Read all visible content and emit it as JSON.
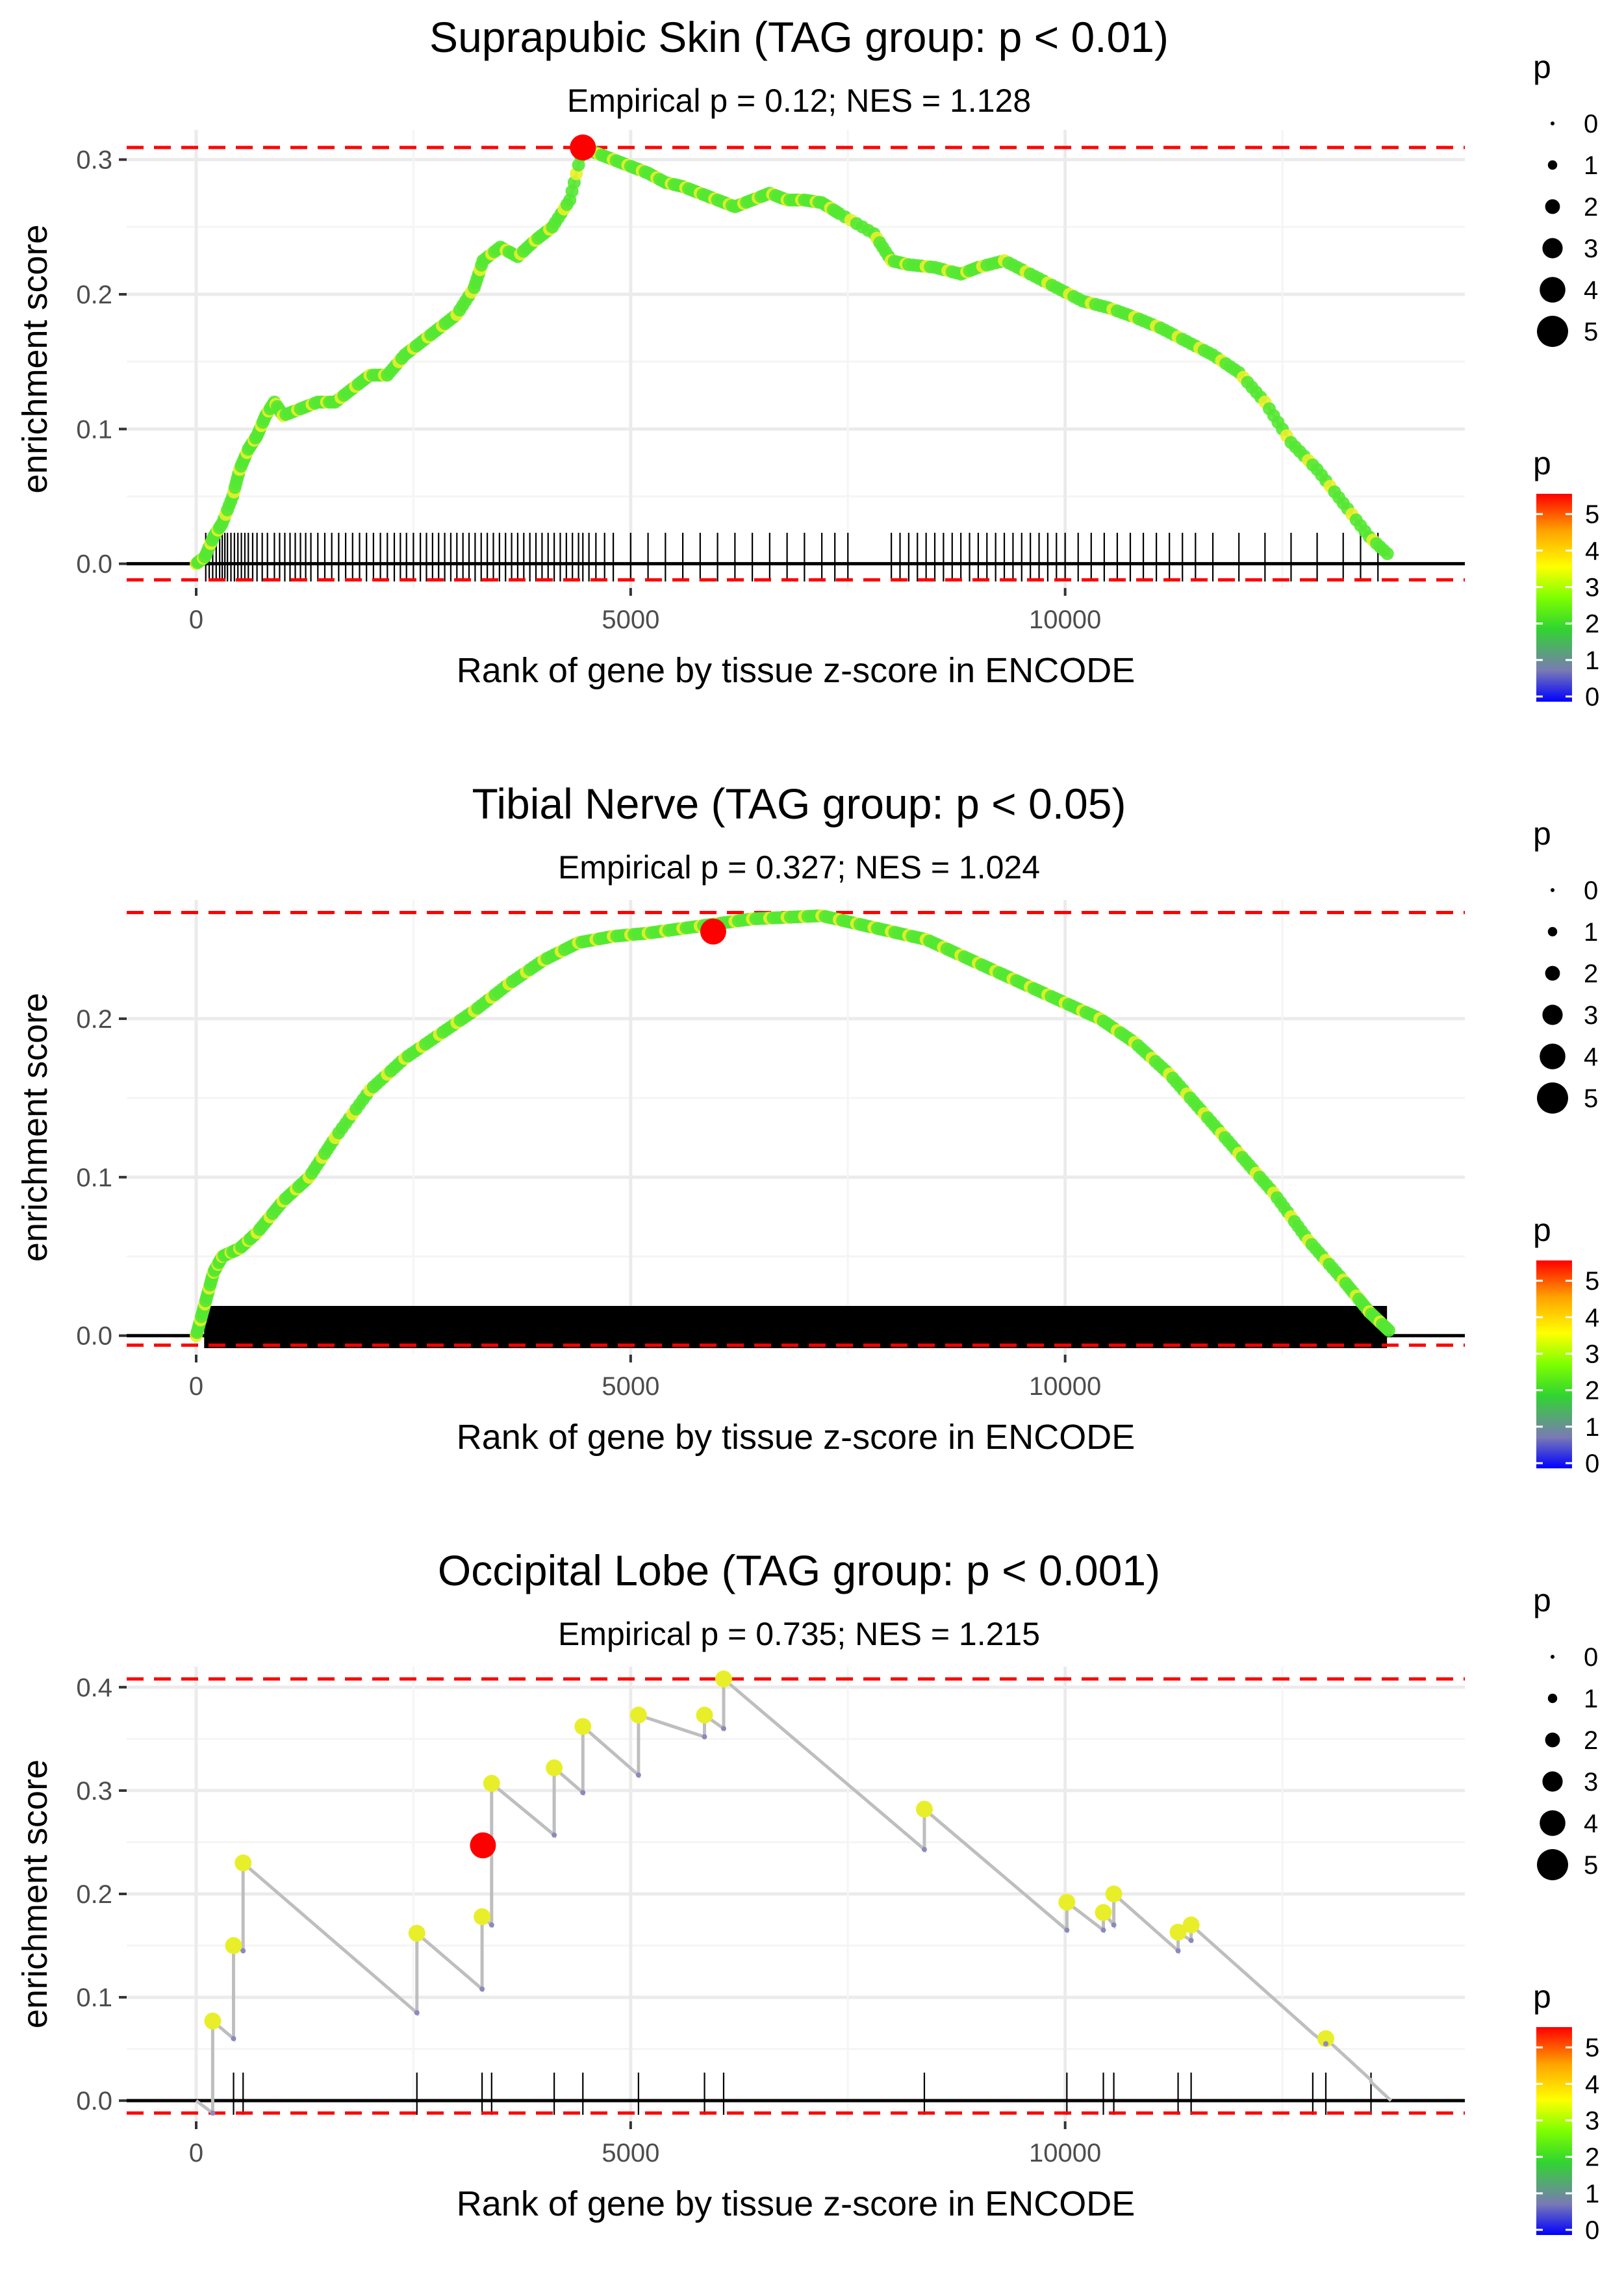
{
  "chart_data": [
    {
      "type": "line",
      "title": "Suprapubic Skin (TAG group: p < 0.01)",
      "subtitle": "Empirical p = 0.12; NES = 1.128",
      "xlabel": "Rank of gene by tissue z-score in ENCODE",
      "ylabel": "enrichment score",
      "xlim": [
        -800,
        14600
      ],
      "ylim": [
        -0.018,
        0.322
      ],
      "x_ticks": [
        0,
        5000,
        10000
      ],
      "x_tick_labels": [
        "0",
        "5000",
        "10000"
      ],
      "y_ticks": [
        0.0,
        0.1,
        0.2,
        0.3
      ],
      "y_tick_labels": [
        "0.0",
        "0.1",
        "0.2",
        "0.3"
      ],
      "max_es": 0.309,
      "min_es": -0.012,
      "leading_edge_point": {
        "x": 4450,
        "y": 0.309
      },
      "curve": [
        [
          0,
          0
        ],
        [
          100,
          0.005
        ],
        [
          200,
          0.02
        ],
        [
          300,
          0.03
        ],
        [
          420,
          0.05
        ],
        [
          500,
          0.07
        ],
        [
          600,
          0.085
        ],
        [
          700,
          0.095
        ],
        [
          800,
          0.11
        ],
        [
          900,
          0.12
        ],
        [
          1000,
          0.11
        ],
        [
          1200,
          0.115
        ],
        [
          1400,
          0.12
        ],
        [
          1600,
          0.12
        ],
        [
          1800,
          0.13
        ],
        [
          2000,
          0.14
        ],
        [
          2200,
          0.14
        ],
        [
          2400,
          0.155
        ],
        [
          2600,
          0.165
        ],
        [
          2800,
          0.175
        ],
        [
          3000,
          0.185
        ],
        [
          3200,
          0.205
        ],
        [
          3300,
          0.225
        ],
        [
          3500,
          0.235
        ],
        [
          3700,
          0.228
        ],
        [
          3900,
          0.24
        ],
        [
          4100,
          0.25
        ],
        [
          4300,
          0.27
        ],
        [
          4450,
          0.309
        ],
        [
          4600,
          0.305
        ],
        [
          4800,
          0.3
        ],
        [
          5000,
          0.295
        ],
        [
          5200,
          0.29
        ],
        [
          5400,
          0.283
        ],
        [
          5600,
          0.28
        ],
        [
          5800,
          0.275
        ],
        [
          6000,
          0.27
        ],
        [
          6200,
          0.265
        ],
        [
          6400,
          0.27
        ],
        [
          6600,
          0.275
        ],
        [
          6800,
          0.27
        ],
        [
          7000,
          0.27
        ],
        [
          7200,
          0.268
        ],
        [
          7400,
          0.26
        ],
        [
          7800,
          0.245
        ],
        [
          8000,
          0.225
        ],
        [
          8200,
          0.222
        ],
        [
          8500,
          0.22
        ],
        [
          8800,
          0.215
        ],
        [
          9000,
          0.22
        ],
        [
          9300,
          0.225
        ],
        [
          9600,
          0.215
        ],
        [
          9900,
          0.205
        ],
        [
          10200,
          0.195
        ],
        [
          10500,
          0.19
        ],
        [
          10800,
          0.183
        ],
        [
          11100,
          0.175
        ],
        [
          11400,
          0.165
        ],
        [
          11700,
          0.155
        ],
        [
          12000,
          0.142
        ],
        [
          12300,
          0.12
        ],
        [
          12600,
          0.09
        ],
        [
          12900,
          0.07
        ],
        [
          13200,
          0.045
        ],
        [
          13500,
          0.02
        ],
        [
          13750,
          0.005
        ]
      ],
      "hits": [
        110,
        150,
        190,
        230,
        270,
        300,
        330,
        360,
        400,
        440,
        480,
        520,
        560,
        600,
        650,
        700,
        760,
        820,
        900,
        960,
        1020,
        1080,
        1140,
        1200,
        1260,
        1320,
        1400,
        1480,
        1560,
        1640,
        1720,
        1800,
        1880,
        1960,
        2040,
        2120,
        2200,
        2280,
        2350,
        2420,
        2500,
        2580,
        2650,
        2720,
        2790,
        2860,
        2930,
        3000,
        3070,
        3140,
        3210,
        3280,
        3350,
        3420,
        3490,
        3560,
        3630,
        3700,
        3770,
        3840,
        3910,
        3980,
        4050,
        4120,
        4190,
        4260,
        4330,
        4400,
        4450,
        4520,
        4600,
        4700,
        4800,
        5000,
        5200,
        5400,
        5600,
        5800,
        6000,
        6200,
        6400,
        6600,
        6800,
        7000,
        7200,
        7350,
        7500,
        8000,
        8100,
        8200,
        8300,
        8400,
        8500,
        8600,
        8700,
        8800,
        8900,
        9000,
        9100,
        9200,
        9300,
        9400,
        9500,
        9600,
        9700,
        9800,
        9900,
        10000,
        10150,
        10300,
        10450,
        10600,
        10750,
        10900,
        11050,
        11200,
        11350,
        11500,
        11700,
        12000,
        12300,
        12600,
        12900,
        13200,
        13400,
        13600
      ],
      "legend": {
        "size_title": "p",
        "size_labels": [
          "0",
          "1",
          "2",
          "3",
          "4",
          "5"
        ],
        "color_title": "p",
        "color_labels": [
          "0",
          "1",
          "2",
          "3",
          "4",
          "5"
        ]
      }
    },
    {
      "type": "line",
      "title": "Tibial Nerve (TAG group: p < 0.05)",
      "subtitle": "Empirical p = 0.327; NES = 1.024",
      "xlabel": "Rank of gene by tissue z-score in ENCODE",
      "ylabel": "enrichment score",
      "xlim": [
        -800,
        14600
      ],
      "ylim": [
        -0.012,
        0.275
      ],
      "x_ticks": [
        0,
        5000,
        10000
      ],
      "x_tick_labels": [
        "0",
        "5000",
        "10000"
      ],
      "y_ticks": [
        0.0,
        0.1,
        0.2
      ],
      "y_tick_labels": [
        "0.0",
        "0.1",
        "0.2"
      ],
      "max_es": 0.267,
      "min_es": -0.006,
      "leading_edge_point": {
        "x": 5950,
        "y": 0.255
      },
      "curve": [
        [
          0,
          0
        ],
        [
          100,
          0.02
        ],
        [
          200,
          0.04
        ],
        [
          300,
          0.05
        ],
        [
          500,
          0.055
        ],
        [
          700,
          0.065
        ],
        [
          1000,
          0.085
        ],
        [
          1300,
          0.1
        ],
        [
          1600,
          0.125
        ],
        [
          2000,
          0.155
        ],
        [
          2400,
          0.175
        ],
        [
          2800,
          0.19
        ],
        [
          3200,
          0.205
        ],
        [
          3600,
          0.222
        ],
        [
          4000,
          0.237
        ],
        [
          4400,
          0.248
        ],
        [
          4800,
          0.252
        ],
        [
          5200,
          0.254
        ],
        [
          5600,
          0.257
        ],
        [
          6000,
          0.26
        ],
        [
          6400,
          0.263
        ],
        [
          6800,
          0.264
        ],
        [
          7200,
          0.265
        ],
        [
          7600,
          0.26
        ],
        [
          8000,
          0.255
        ],
        [
          8400,
          0.25
        ],
        [
          8800,
          0.24
        ],
        [
          9200,
          0.23
        ],
        [
          9600,
          0.22
        ],
        [
          10000,
          0.21
        ],
        [
          10400,
          0.2
        ],
        [
          10800,
          0.185
        ],
        [
          11200,
          0.165
        ],
        [
          11600,
          0.14
        ],
        [
          12000,
          0.115
        ],
        [
          12400,
          0.09
        ],
        [
          12800,
          0.06
        ],
        [
          13200,
          0.035
        ],
        [
          13500,
          0.015
        ],
        [
          13750,
          0.002
        ]
      ],
      "hits": "dense: approximately every rank from 100 to 13700",
      "legend": {
        "size_title": "p",
        "size_labels": [
          "0",
          "1",
          "2",
          "3",
          "4",
          "5"
        ],
        "color_title": "p",
        "color_labels": [
          "0",
          "1",
          "2",
          "3",
          "4",
          "5"
        ]
      }
    },
    {
      "type": "line",
      "title": "Occipital Lobe (TAG group: p < 0.001)",
      "subtitle": "Empirical p = 0.735; NES = 1.215",
      "xlabel": "Rank of gene by tissue z-score in ENCODE",
      "ylabel": "enrichment score",
      "xlim": [
        -800,
        14600
      ],
      "ylim": [
        -0.02,
        0.42
      ],
      "x_ticks": [
        0,
        5000,
        10000
      ],
      "x_tick_labels": [
        "0",
        "5000",
        "10000"
      ],
      "y_ticks": [
        0.0,
        0.1,
        0.2,
        0.3,
        0.4
      ],
      "y_tick_labels": [
        "0.0",
        "0.1",
        "0.2",
        "0.3",
        "0.4"
      ],
      "max_es": 0.408,
      "min_es": -0.012,
      "leading_edge_point": {
        "x": 3300,
        "y": 0.247
      },
      "curve": [
        [
          0,
          0
        ],
        [
          190,
          -0.012
        ],
        [
          190,
          0.077
        ],
        [
          430,
          0.06
        ],
        [
          430,
          0.15
        ],
        [
          540,
          0.145
        ],
        [
          540,
          0.23
        ],
        [
          2540,
          0.085
        ],
        [
          2540,
          0.162
        ],
        [
          3290,
          0.108
        ],
        [
          3290,
          0.178
        ],
        [
          3400,
          0.17
        ],
        [
          3400,
          0.307
        ],
        [
          4120,
          0.257
        ],
        [
          4120,
          0.322
        ],
        [
          4450,
          0.298
        ],
        [
          4450,
          0.362
        ],
        [
          5090,
          0.315
        ],
        [
          5090,
          0.373
        ],
        [
          5850,
          0.352
        ],
        [
          5850,
          0.373
        ],
        [
          6070,
          0.36
        ],
        [
          6070,
          0.408
        ],
        [
          8380,
          0.243
        ],
        [
          8380,
          0.282
        ],
        [
          10020,
          0.165
        ],
        [
          10020,
          0.192
        ],
        [
          10440,
          0.165
        ],
        [
          10440,
          0.182
        ],
        [
          10560,
          0.17
        ],
        [
          10560,
          0.2
        ],
        [
          11300,
          0.145
        ],
        [
          11300,
          0.163
        ],
        [
          11450,
          0.155
        ],
        [
          11450,
          0.17
        ],
        [
          12850,
          0.065
        ],
        [
          12850,
          0.065
        ],
        [
          13000,
          0.055
        ],
        [
          13000,
          0.06
        ],
        [
          13520,
          0.02
        ],
        [
          13520,
          0.018
        ],
        [
          13750,
          0
        ]
      ],
      "highlight_point": {
        "x": 3300,
        "y": 0.247
      },
      "hits": [
        190,
        430,
        540,
        2540,
        3290,
        3400,
        4120,
        4450,
        5090,
        5850,
        6070,
        8380,
        10020,
        10440,
        10560,
        11300,
        11450,
        12850,
        13000,
        13520
      ],
      "legend": {
        "size_title": "p",
        "size_labels": [
          "0",
          "1",
          "2",
          "3",
          "4",
          "5"
        ],
        "color_title": "p",
        "color_labels": [
          "0",
          "1",
          "2",
          "3",
          "4",
          "5"
        ]
      }
    }
  ],
  "colors": {
    "line": "#bebebe",
    "zero_line": "#000000",
    "dashed": "#ff0000",
    "grid": "#ebebeb",
    "highlight": "#ff0000",
    "point_green": "#54e832",
    "point_yellow": "#e8ef2a",
    "gradient": [
      "#0000ff",
      "#7070b0",
      "#30d030",
      "#7fff00",
      "#ffff00",
      "#ffa500",
      "#ff0000"
    ]
  }
}
